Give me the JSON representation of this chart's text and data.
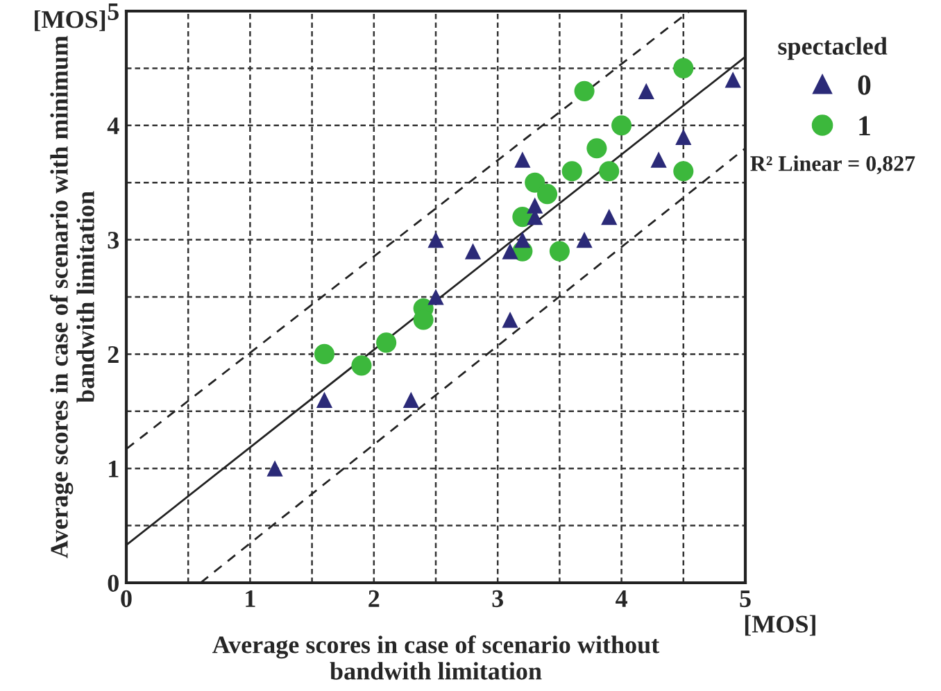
{
  "chart_data": {
    "type": "scatter",
    "xlabel": "Average scores in case of scenario without\nbandwith limitation",
    "ylabel": "Average scores in case of scenario with minimum\nbandwith limitation",
    "legend_title": "spectacled",
    "legend": "top right",
    "grid": true,
    "xlim": [
      0,
      5
    ],
    "ylim": [
      0,
      5
    ],
    "xticks": [
      0,
      {
        "value": 0.5,
        "label": null
      },
      1,
      {
        "value": 1.5,
        "label": null
      },
      2,
      {
        "value": 2.5,
        "label": null
      },
      3,
      {
        "value": 3.5,
        "label": null
      },
      4,
      {
        "value": 4.5,
        "label": null
      },
      5
    ],
    "yticks": [
      0,
      {
        "value": 0.5,
        "label": null
      },
      1,
      {
        "value": 1.5,
        "label": null
      },
      2,
      {
        "value": 2.5,
        "label": null
      },
      3,
      {
        "value": 3.5,
        "label": null
      },
      4,
      {
        "value": 4.5,
        "label": null
      },
      5
    ],
    "annotations": [
      "[MOS]",
      "[MOS]",
      "R² Linear = 0,827"
    ],
    "series": [
      {
        "name": "0",
        "color": "#2b2a78",
        "marker": "triangle",
        "x": [
          1.2,
          1.6,
          2.3,
          2.5,
          2.5,
          2.8,
          3.1,
          3.1,
          3.2,
          3.2,
          3.3,
          3.3,
          3.7,
          3.9,
          4.2,
          4.3,
          4.5,
          4.9
        ],
        "values": [
          1.0,
          1.6,
          1.6,
          2.5,
          3.0,
          2.9,
          2.3,
          2.9,
          3.7,
          3.0,
          3.3,
          3.2,
          3.0,
          3.2,
          4.3,
          3.7,
          3.9,
          4.4
        ]
      },
      {
        "name": "1",
        "color": "#3cb83c",
        "marker": "circle",
        "x": [
          1.6,
          1.9,
          2.1,
          2.4,
          2.4,
          3.2,
          3.2,
          3.3,
          3.4,
          3.5,
          3.6,
          3.7,
          3.8,
          3.9,
          4.0,
          4.5,
          4.5
        ],
        "values": [
          2.0,
          1.9,
          2.1,
          2.4,
          2.3,
          2.9,
          3.2,
          3.5,
          3.4,
          2.9,
          3.6,
          4.3,
          3.8,
          3.6,
          4.0,
          4.5,
          3.6
        ]
      },
      {
        "type": "line",
        "color": "#222222",
        "line_style": "solid",
        "x": [
          0,
          5
        ],
        "values": [
          0.33,
          4.6
        ]
      },
      {
        "type": "line",
        "color": "#222222",
        "line_style": "dashed",
        "x": [
          0,
          4.55
        ],
        "values": [
          1.17,
          5.0
        ]
      },
      {
        "type": "line",
        "color": "#222222",
        "line_style": "dashed",
        "x": [
          0.6,
          5
        ],
        "values": [
          0,
          3.8
        ]
      }
    ]
  }
}
